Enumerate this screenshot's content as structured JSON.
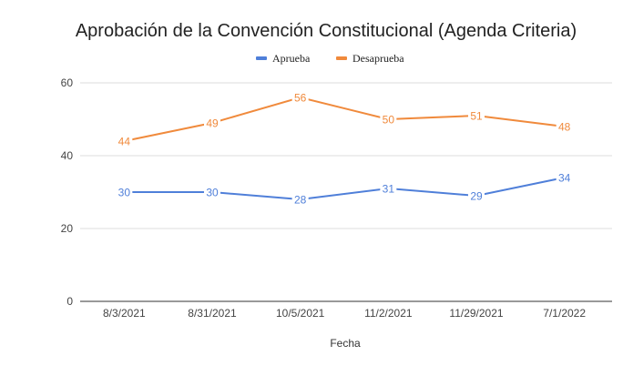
{
  "chart_data": {
    "type": "line",
    "title": "Aprobación de la Convención Constitucional (Agenda Criteria)",
    "xlabel": "Fecha",
    "ylabel": "",
    "categories": [
      "8/3/2021",
      "8/31/2021",
      "10/5/2021",
      "11/2/2021",
      "11/29/2021",
      "7/1/2022"
    ],
    "ylim": [
      0,
      60
    ],
    "yticks": [
      "0",
      "20",
      "40",
      "60"
    ],
    "grid": true,
    "legend_position": "top",
    "series": [
      {
        "name": "Aprueba",
        "color": "#4f7fd9",
        "values": [
          30,
          30,
          28,
          31,
          29,
          34
        ]
      },
      {
        "name": "Desaprueba",
        "color": "#f08a3c",
        "values": [
          44,
          49,
          56,
          50,
          51,
          48
        ]
      }
    ]
  }
}
